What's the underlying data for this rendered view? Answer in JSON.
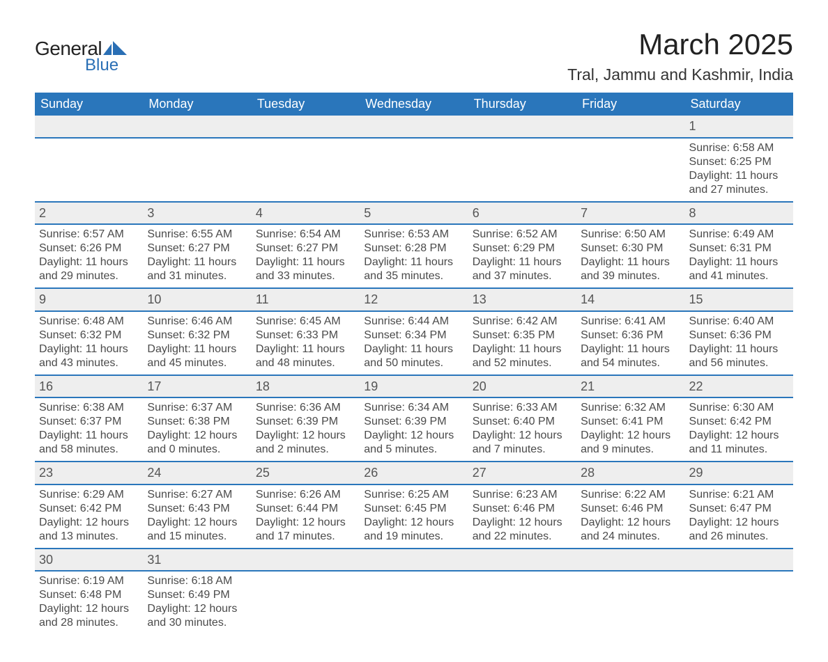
{
  "brand": {
    "word1": "General",
    "word2": "Blue",
    "shape_color": "#2a6fb5"
  },
  "title": "March 2025",
  "location": "Tral, Jammu and Kashmir, India",
  "colors": {
    "header_bg": "#2a76bb",
    "header_text": "#ffffff",
    "daynum_bg": "#eeeeee",
    "row_border": "#2a76bb",
    "body_text": "#4a4a4a"
  },
  "weekdays": [
    "Sunday",
    "Monday",
    "Tuesday",
    "Wednesday",
    "Thursday",
    "Friday",
    "Saturday"
  ],
  "labels": {
    "sunrise": "Sunrise: ",
    "sunset": "Sunset: ",
    "daylight": "Daylight: "
  },
  "weeks": [
    [
      null,
      null,
      null,
      null,
      null,
      null,
      {
        "n": "1",
        "rise": "6:58 AM",
        "set": "6:25 PM",
        "dl": "11 hours and 27 minutes."
      }
    ],
    [
      {
        "n": "2",
        "rise": "6:57 AM",
        "set": "6:26 PM",
        "dl": "11 hours and 29 minutes."
      },
      {
        "n": "3",
        "rise": "6:55 AM",
        "set": "6:27 PM",
        "dl": "11 hours and 31 minutes."
      },
      {
        "n": "4",
        "rise": "6:54 AM",
        "set": "6:27 PM",
        "dl": "11 hours and 33 minutes."
      },
      {
        "n": "5",
        "rise": "6:53 AM",
        "set": "6:28 PM",
        "dl": "11 hours and 35 minutes."
      },
      {
        "n": "6",
        "rise": "6:52 AM",
        "set": "6:29 PM",
        "dl": "11 hours and 37 minutes."
      },
      {
        "n": "7",
        "rise": "6:50 AM",
        "set": "6:30 PM",
        "dl": "11 hours and 39 minutes."
      },
      {
        "n": "8",
        "rise": "6:49 AM",
        "set": "6:31 PM",
        "dl": "11 hours and 41 minutes."
      }
    ],
    [
      {
        "n": "9",
        "rise": "6:48 AM",
        "set": "6:32 PM",
        "dl": "11 hours and 43 minutes."
      },
      {
        "n": "10",
        "rise": "6:46 AM",
        "set": "6:32 PM",
        "dl": "11 hours and 45 minutes."
      },
      {
        "n": "11",
        "rise": "6:45 AM",
        "set": "6:33 PM",
        "dl": "11 hours and 48 minutes."
      },
      {
        "n": "12",
        "rise": "6:44 AM",
        "set": "6:34 PM",
        "dl": "11 hours and 50 minutes."
      },
      {
        "n": "13",
        "rise": "6:42 AM",
        "set": "6:35 PM",
        "dl": "11 hours and 52 minutes."
      },
      {
        "n": "14",
        "rise": "6:41 AM",
        "set": "6:36 PM",
        "dl": "11 hours and 54 minutes."
      },
      {
        "n": "15",
        "rise": "6:40 AM",
        "set": "6:36 PM",
        "dl": "11 hours and 56 minutes."
      }
    ],
    [
      {
        "n": "16",
        "rise": "6:38 AM",
        "set": "6:37 PM",
        "dl": "11 hours and 58 minutes."
      },
      {
        "n": "17",
        "rise": "6:37 AM",
        "set": "6:38 PM",
        "dl": "12 hours and 0 minutes."
      },
      {
        "n": "18",
        "rise": "6:36 AM",
        "set": "6:39 PM",
        "dl": "12 hours and 2 minutes."
      },
      {
        "n": "19",
        "rise": "6:34 AM",
        "set": "6:39 PM",
        "dl": "12 hours and 5 minutes."
      },
      {
        "n": "20",
        "rise": "6:33 AM",
        "set": "6:40 PM",
        "dl": "12 hours and 7 minutes."
      },
      {
        "n": "21",
        "rise": "6:32 AM",
        "set": "6:41 PM",
        "dl": "12 hours and 9 minutes."
      },
      {
        "n": "22",
        "rise": "6:30 AM",
        "set": "6:42 PM",
        "dl": "12 hours and 11 minutes."
      }
    ],
    [
      {
        "n": "23",
        "rise": "6:29 AM",
        "set": "6:42 PM",
        "dl": "12 hours and 13 minutes."
      },
      {
        "n": "24",
        "rise": "6:27 AM",
        "set": "6:43 PM",
        "dl": "12 hours and 15 minutes."
      },
      {
        "n": "25",
        "rise": "6:26 AM",
        "set": "6:44 PM",
        "dl": "12 hours and 17 minutes."
      },
      {
        "n": "26",
        "rise": "6:25 AM",
        "set": "6:45 PM",
        "dl": "12 hours and 19 minutes."
      },
      {
        "n": "27",
        "rise": "6:23 AM",
        "set": "6:46 PM",
        "dl": "12 hours and 22 minutes."
      },
      {
        "n": "28",
        "rise": "6:22 AM",
        "set": "6:46 PM",
        "dl": "12 hours and 24 minutes."
      },
      {
        "n": "29",
        "rise": "6:21 AM",
        "set": "6:47 PM",
        "dl": "12 hours and 26 minutes."
      }
    ],
    [
      {
        "n": "30",
        "rise": "6:19 AM",
        "set": "6:48 PM",
        "dl": "12 hours and 28 minutes."
      },
      {
        "n": "31",
        "rise": "6:18 AM",
        "set": "6:49 PM",
        "dl": "12 hours and 30 minutes."
      },
      null,
      null,
      null,
      null,
      null
    ]
  ]
}
